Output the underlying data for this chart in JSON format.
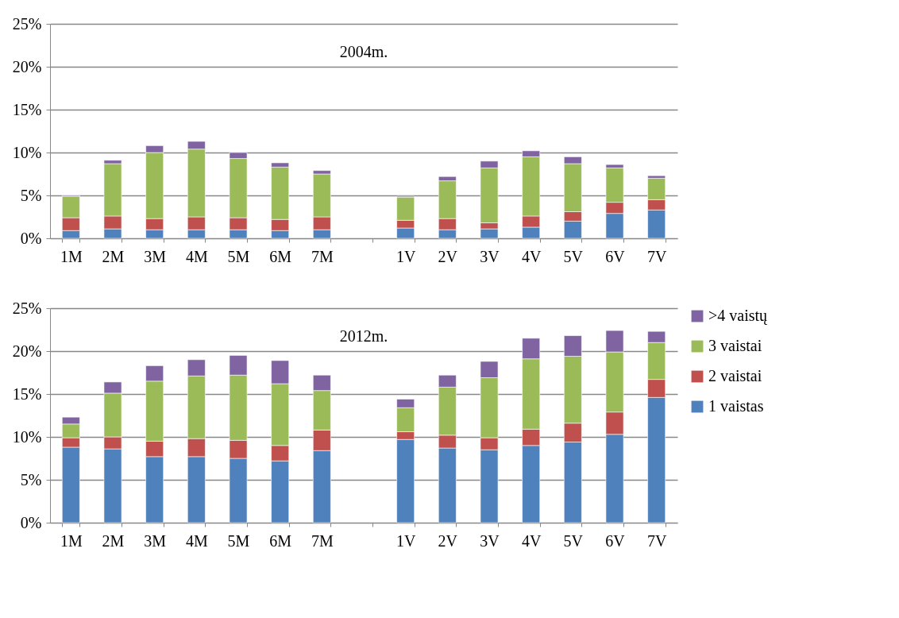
{
  "chart_data": [
    {
      "type": "bar",
      "stacked": true,
      "annotations": [
        "2004m."
      ],
      "legend": false,
      "grid": "y",
      "categories": [
        "1M",
        "2M",
        "3M",
        "4M",
        "5M",
        "6M",
        "7M",
        null,
        "1V",
        "2V",
        "3V",
        "4V",
        "5V",
        "6V",
        "7V"
      ],
      "ylim": [
        0,
        25
      ],
      "yticks": [
        {
          "value": 0,
          "label": "0%"
        },
        {
          "value": 5,
          "label": "5%"
        },
        {
          "value": 10,
          "label": "10%"
        },
        {
          "value": 15,
          "label": "15%"
        },
        {
          "value": 20,
          "label": "20%"
        },
        {
          "value": 25,
          "label": "25%"
        }
      ],
      "series": [
        {
          "color": "#4f81bd",
          "values": [
            0.9,
            1.1,
            1.0,
            1.0,
            1.0,
            0.9,
            1.0,
            null,
            1.2,
            1.0,
            1.1,
            1.3,
            2.0,
            2.9,
            3.3
          ]
        },
        {
          "color": "#c0504d",
          "values": [
            1.5,
            1.5,
            1.3,
            1.5,
            1.4,
            1.3,
            1.5,
            null,
            0.9,
            1.3,
            0.7,
            1.3,
            1.1,
            1.3,
            1.2
          ]
        },
        {
          "color": "#9bbb59",
          "values": [
            2.5,
            6.1,
            7.7,
            7.9,
            6.9,
            6.1,
            5.0,
            null,
            2.7,
            4.4,
            6.4,
            6.9,
            5.6,
            4.0,
            2.5
          ]
        },
        {
          "color": "#8064a2",
          "values": [
            0.1,
            0.4,
            0.8,
            0.9,
            0.7,
            0.5,
            0.4,
            null,
            0.1,
            0.5,
            0.8,
            0.7,
            0.8,
            0.4,
            0.3
          ]
        }
      ]
    },
    {
      "type": "bar",
      "stacked": true,
      "annotations": [
        "2012m."
      ],
      "legend": "right",
      "grid": "y",
      "categories": [
        "1M",
        "2M",
        "3M",
        "4M",
        "5M",
        "6M",
        "7M",
        null,
        "1V",
        "2V",
        "3V",
        "4V",
        "5V",
        "6V",
        "7V"
      ],
      "ylim": [
        0,
        25
      ],
      "yticks": [
        {
          "value": 0,
          "label": "0%"
        },
        {
          "value": 5,
          "label": "5%"
        },
        {
          "value": 10,
          "label": "10%"
        },
        {
          "value": 15,
          "label": "15%"
        },
        {
          "value": 20,
          "label": "20%"
        },
        {
          "value": 25,
          "label": "25%"
        }
      ],
      "series": [
        {
          "name": "1 vaistas",
          "color": "#4f81bd",
          "values": [
            8.8,
            8.6,
            7.7,
            7.7,
            7.5,
            7.2,
            8.4,
            null,
            9.7,
            8.7,
            8.5,
            9.0,
            9.4,
            10.3,
            14.6
          ]
        },
        {
          "name": "2 vaistai",
          "color": "#c0504d",
          "values": [
            1.1,
            1.4,
            1.8,
            2.1,
            2.1,
            1.8,
            2.4,
            null,
            0.9,
            1.5,
            1.4,
            1.9,
            2.2,
            2.6,
            2.1
          ]
        },
        {
          "name": "3 vaistai",
          "color": "#9bbb59",
          "values": [
            1.6,
            5.1,
            7.0,
            7.3,
            7.6,
            7.2,
            4.6,
            null,
            2.8,
            5.6,
            7.0,
            8.2,
            7.8,
            7.0,
            4.3
          ]
        },
        {
          "name": ">4 vaistų",
          "color": "#8064a2",
          "values": [
            0.8,
            1.3,
            1.8,
            1.9,
            2.3,
            2.7,
            1.8,
            null,
            1.0,
            1.4,
            1.9,
            2.4,
            2.4,
            2.5,
            1.3
          ]
        }
      ]
    }
  ]
}
